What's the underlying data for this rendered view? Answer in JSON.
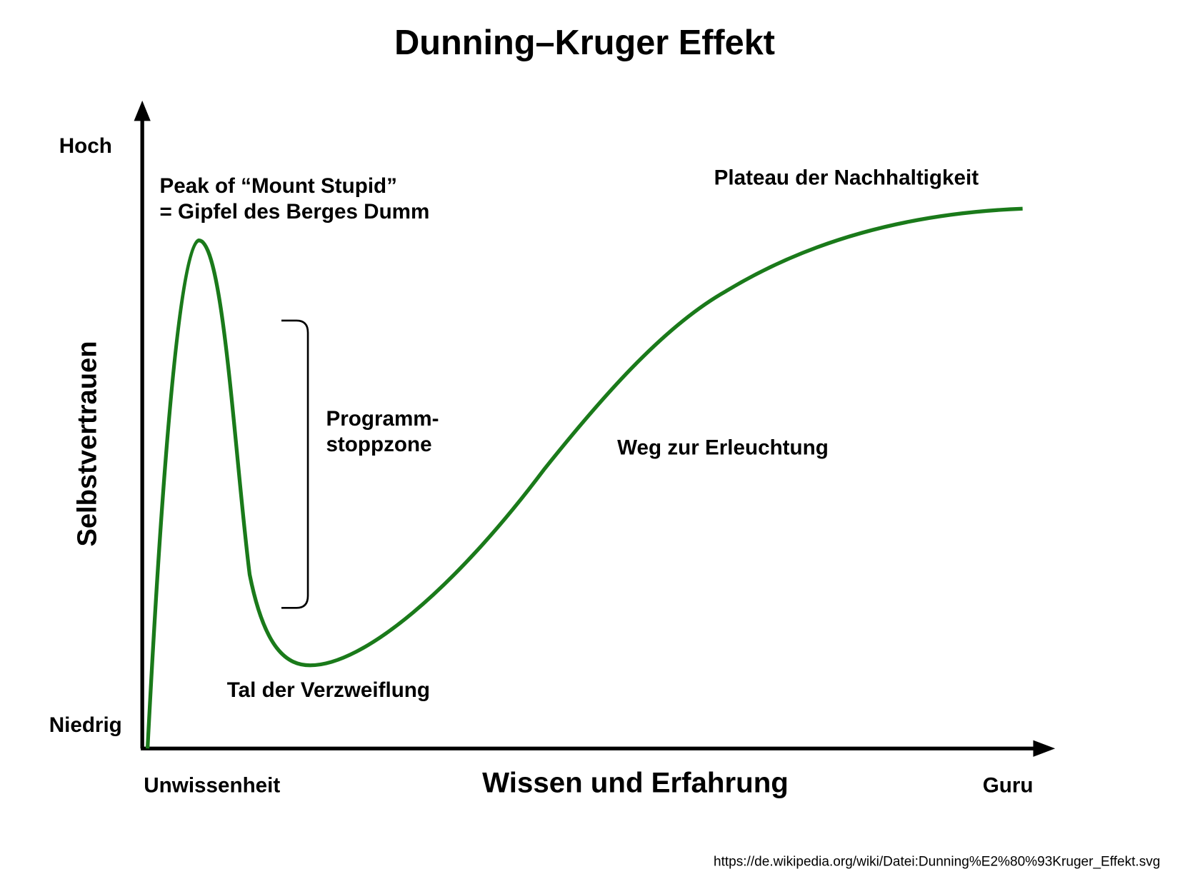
{
  "title": "Dunning–Kruger Effekt",
  "y_axis": {
    "label": "Selbstvertrauen",
    "high": "Hoch",
    "low": "Niedrig"
  },
  "x_axis": {
    "label": "Wissen und Erfahrung",
    "low": "Unwissenheit",
    "high": "Guru"
  },
  "annotations": {
    "peak": [
      "Peak of “Mount Stupid”",
      "= Gipfel des Berges Dumm"
    ],
    "stop_zone": [
      "Programm-",
      "stoppzone"
    ],
    "valley": "Tal der Verzweiflung",
    "slope": "Weg zur Erleuchtung",
    "plateau": "Plateau der Nachhaltigkeit"
  },
  "source": "https://de.wikipedia.org/wiki/Datei:Dunning%E2%80%93Kruger_Effekt.svg"
}
